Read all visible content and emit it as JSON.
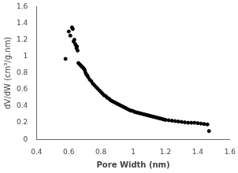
{
  "chart_data": {
    "type": "scatter",
    "x": [
      0.58,
      0.6,
      0.61,
      0.62,
      0.625,
      0.63,
      0.635,
      0.64,
      0.645,
      0.648,
      0.651,
      0.655,
      0.66,
      0.665,
      0.67,
      0.675,
      0.68,
      0.685,
      0.69,
      0.695,
      0.7,
      0.705,
      0.71,
      0.715,
      0.72,
      0.73,
      0.74,
      0.75,
      0.76,
      0.77,
      0.78,
      0.79,
      0.8,
      0.81,
      0.82,
      0.83,
      0.84,
      0.85,
      0.86,
      0.87,
      0.88,
      0.89,
      0.9,
      0.91,
      0.92,
      0.93,
      0.94,
      0.95,
      0.96,
      0.97,
      0.98,
      0.99,
      1.0,
      1.01,
      1.02,
      1.03,
      1.04,
      1.05,
      1.06,
      1.07,
      1.08,
      1.09,
      1.1,
      1.11,
      1.12,
      1.13,
      1.14,
      1.15,
      1.16,
      1.17,
      1.18,
      1.19,
      1.2,
      1.22,
      1.24,
      1.26,
      1.28,
      1.3,
      1.32,
      1.34,
      1.36,
      1.38,
      1.4,
      1.42,
      1.44,
      1.46,
      1.47
    ],
    "values": [
      0.97,
      1.3,
      1.25,
      1.35,
      1.33,
      1.18,
      1.2,
      1.15,
      1.13,
      1.1,
      1.12,
      1.07,
      0.92,
      0.91,
      0.9,
      0.89,
      0.88,
      0.87,
      0.86,
      0.85,
      0.83,
      0.8,
      0.78,
      0.77,
      0.75,
      0.72,
      0.7,
      0.67,
      0.65,
      0.63,
      0.61,
      0.59,
      0.57,
      0.55,
      0.53,
      0.52,
      0.5,
      0.49,
      0.47,
      0.46,
      0.45,
      0.44,
      0.43,
      0.42,
      0.41,
      0.4,
      0.39,
      0.38,
      0.37,
      0.36,
      0.35,
      0.345,
      0.34,
      0.33,
      0.325,
      0.32,
      0.315,
      0.31,
      0.305,
      0.3,
      0.295,
      0.29,
      0.285,
      0.28,
      0.275,
      0.27,
      0.265,
      0.26,
      0.255,
      0.25,
      0.245,
      0.24,
      0.235,
      0.23,
      0.225,
      0.22,
      0.215,
      0.21,
      0.205,
      0.2,
      0.2,
      0.2,
      0.195,
      0.19,
      0.185,
      0.18,
      0.1
    ],
    "xlabel": "Pore Width (nm)",
    "ylabel": "dV/dW (cm³/g.nm)",
    "xlim": [
      0.4,
      1.6
    ],
    "ylim": [
      0,
      1.6
    ],
    "xticks": [
      0.4,
      0.6,
      0.8,
      1,
      1.2,
      1.4,
      1.6
    ],
    "yticks": [
      0,
      0.2,
      0.4,
      0.6,
      0.8,
      1,
      1.2,
      1.4,
      1.6
    ],
    "color": "black",
    "grid": false
  }
}
